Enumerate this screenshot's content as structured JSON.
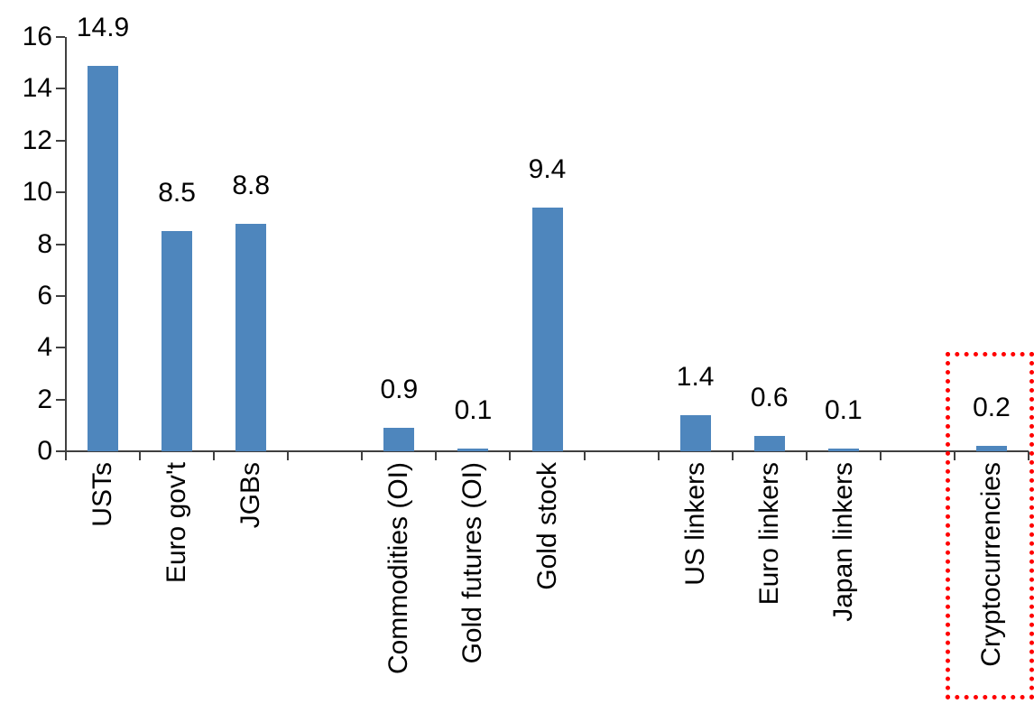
{
  "chart_data": {
    "type": "bar",
    "title": "",
    "categories": [
      "USTs",
      "Euro gov't",
      "JGBs",
      "Commodities (OI)",
      "Gold futures (OI)",
      "Gold stock",
      "US linkers",
      "Euro linkers",
      "Japan linkers",
      "Cryptocurrencies"
    ],
    "values": [
      14.9,
      8.5,
      8.8,
      0.9,
      0.1,
      9.4,
      1.4,
      0.6,
      0.1,
      0.2
    ],
    "value_labels": [
      "14.9",
      "8.5",
      "8.8",
      "0.9",
      "0.1",
      "9.4",
      "1.4",
      "0.6",
      "0.1",
      "0.2"
    ],
    "ytick_labels": [
      "0",
      "2",
      "4",
      "6",
      "8",
      "10",
      "12",
      "14",
      "16"
    ],
    "yticks": [
      0,
      2,
      4,
      6,
      8,
      10,
      12,
      14,
      16
    ],
    "ylim": [
      0,
      16
    ],
    "xlabel": "",
    "ylabel": "",
    "grid": false,
    "legend": "none",
    "x_label_rotation": 90,
    "slot_count": 13,
    "slot_indices": [
      0,
      1,
      2,
      4,
      5,
      6,
      8,
      9,
      10,
      12
    ],
    "bar_color": "#4E86BD",
    "axis_color": "#404040",
    "text_color": "#000000",
    "highlight": {
      "category": "Cryptocurrencies",
      "shape": "dotted-rectangle",
      "color": "#FF0000"
    }
  }
}
